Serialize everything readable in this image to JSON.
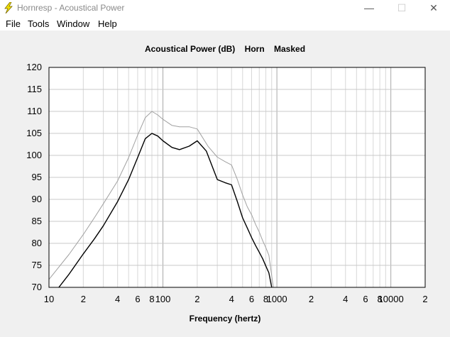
{
  "window": {
    "title": "Hornresp - Acoustical Power",
    "minimize_glyph": "—",
    "maximize_glyph": "☐",
    "close_glyph": "✕",
    "icon": "lightning-bolt-icon"
  },
  "menu": [
    "File",
    "Tools",
    "Window",
    "Help"
  ],
  "chart_title_parts": [
    "Acoustical Power (dB)",
    "Horn",
    "Masked"
  ],
  "chart_data": {
    "type": "line",
    "title": "Acoustical Power (dB)   Horn   Masked",
    "xlabel": "Frequency (hertz)",
    "ylabel": "",
    "x_scale": "log",
    "xlim": [
      10,
      20000
    ],
    "ylim": [
      70,
      120
    ],
    "y_ticks": [
      120,
      115,
      110,
      105,
      100,
      95,
      90,
      85,
      80,
      75,
      70
    ],
    "x_tick_labels": [
      {
        "value": 10,
        "label": "10"
      },
      {
        "value": 20,
        "label": "2"
      },
      {
        "value": 40,
        "label": "4"
      },
      {
        "value": 60,
        "label": "6"
      },
      {
        "value": 80,
        "label": "8"
      },
      {
        "value": 100,
        "label": "100"
      },
      {
        "value": 200,
        "label": "2"
      },
      {
        "value": 400,
        "label": "4"
      },
      {
        "value": 600,
        "label": "6"
      },
      {
        "value": 800,
        "label": "8"
      },
      {
        "value": 1000,
        "label": "1000"
      },
      {
        "value": 2000,
        "label": "2"
      },
      {
        "value": 4000,
        "label": "4"
      },
      {
        "value": 6000,
        "label": "6"
      },
      {
        "value": 8000,
        "label": "8"
      },
      {
        "value": 10000,
        "label": "10000"
      },
      {
        "value": 20000,
        "label": "2"
      }
    ],
    "grid": true,
    "series": [
      {
        "color": "#000000",
        "x": [
          12.2,
          15,
          20,
          25,
          30,
          40,
          50,
          60,
          70,
          80,
          90,
          100,
          120,
          140,
          170,
          200,
          240,
          300,
          350,
          400,
          450,
          500,
          550,
          600,
          650,
          700,
          750,
          800,
          850,
          900
        ],
        "y": [
          70,
          73,
          77.6,
          81,
          84,
          89.5,
          94.5,
          99.5,
          103.8,
          105,
          104.4,
          103.3,
          101.8,
          101.3,
          102.1,
          103.3,
          101,
          94.5,
          93.8,
          93.3,
          89.5,
          85.8,
          83.5,
          81.3,
          79.5,
          78,
          76.5,
          74.8,
          73.3,
          70
        ]
      },
      {
        "color": "#a0a0a0",
        "x": [
          10,
          15,
          20,
          25,
          30,
          40,
          50,
          60,
          70,
          80,
          90,
          100,
          120,
          140,
          170,
          200,
          250,
          300,
          350,
          400,
          450,
          500,
          550,
          600,
          650,
          700,
          750,
          800,
          850,
          930
        ],
        "y": [
          71.8,
          77.5,
          82,
          85.8,
          89,
          94.2,
          99.5,
          104.6,
          108.6,
          110,
          109.2,
          108.2,
          106.8,
          106.5,
          106.5,
          106,
          102,
          99.6,
          98.6,
          97.8,
          94.5,
          91,
          88.3,
          86.5,
          84.3,
          82.6,
          80.6,
          79,
          77.3,
          70
        ]
      }
    ]
  }
}
